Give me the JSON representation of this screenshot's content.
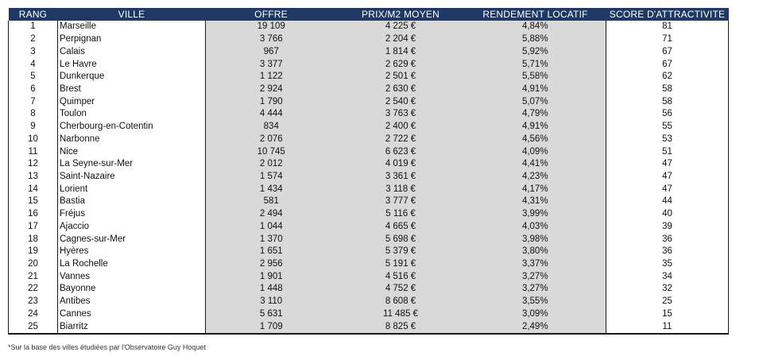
{
  "table": {
    "headers": [
      "RANG",
      "VILLE",
      "OFFRE",
      "PRIX/M2 MOYEN",
      "RENDEMENT LOCATIF",
      "SCORE D'ATTRACTIVITE"
    ],
    "rows": [
      [
        "1",
        "Marseille",
        "19 109",
        "4 225 €",
        "4,84%",
        "81"
      ],
      [
        "2",
        "Perpignan",
        "3 766",
        "2 204 €",
        "5,88%",
        "71"
      ],
      [
        "3",
        "Calais",
        "967",
        "1 814 €",
        "5,92%",
        "67"
      ],
      [
        "4",
        "Le Havre",
        "3 377",
        "2 629 €",
        "5,71%",
        "67"
      ],
      [
        "5",
        "Dunkerque",
        "1 122",
        "2 501 €",
        "5,58%",
        "62"
      ],
      [
        "6",
        "Brest",
        "2 924",
        "2 630 €",
        "4,91%",
        "58"
      ],
      [
        "7",
        "Quimper",
        "1 790",
        "2 540 €",
        "5,07%",
        "58"
      ],
      [
        "8",
        "Toulon",
        "4 444",
        "3 763 €",
        "4,79%",
        "56"
      ],
      [
        "9",
        "Cherbourg-en-Cotentin",
        "834",
        "2 400 €",
        "4,91%",
        "55"
      ],
      [
        "10",
        "Narbonne",
        "2 076",
        "2 722 €",
        "4,56%",
        "53"
      ],
      [
        "11",
        "Nice",
        "10 745",
        "6 623 €",
        "4,09%",
        "51"
      ],
      [
        "12",
        "La Seyne-sur-Mer",
        "2 012",
        "4 019 €",
        "4,41%",
        "47"
      ],
      [
        "13",
        "Saint-Nazaire",
        "1 574",
        "3 361 €",
        "4,23%",
        "47"
      ],
      [
        "14",
        "Lorient",
        "1 434",
        "3 118 €",
        "4,17%",
        "47"
      ],
      [
        "15",
        "Bastia",
        "581",
        "3 777 €",
        "4,31%",
        "44"
      ],
      [
        "16",
        "Fréjus",
        "2 494",
        "5 116 €",
        "3,99%",
        "40"
      ],
      [
        "17",
        "Ajaccio",
        "1 044",
        "4 665 €",
        "4,03%",
        "39"
      ],
      [
        "18",
        "Cagnes-sur-Mer",
        "1 370",
        "5 698 €",
        "3,98%",
        "36"
      ],
      [
        "19",
        "Hyères",
        "1 651",
        "5 379 €",
        "3,80%",
        "36"
      ],
      [
        "20",
        "La Rochelle",
        "2 956",
        "5 191 €",
        "3,37%",
        "35"
      ],
      [
        "21",
        "Vannes",
        "1 901",
        "4 516 €",
        "3,27%",
        "34"
      ],
      [
        "22",
        "Bayonne",
        "1 448",
        "4 752 €",
        "3,27%",
        "32"
      ],
      [
        "23",
        "Antibes",
        "3 110",
        "8 608 €",
        "3,55%",
        "25"
      ],
      [
        "24",
        "Cannes",
        "5 631",
        "11 485 €",
        "3,09%",
        "15"
      ],
      [
        "25",
        "Biarritz",
        "1 709",
        "8 825 €",
        "2,49%",
        "11"
      ]
    ]
  },
  "footnote": "*Sur la base des villes étudiées par l'Observatoire Guy Hoquet",
  "colors": {
    "header_bg": "#1f3864",
    "header_text": "#ffffff",
    "grey_cells": "#d9d9d9"
  }
}
